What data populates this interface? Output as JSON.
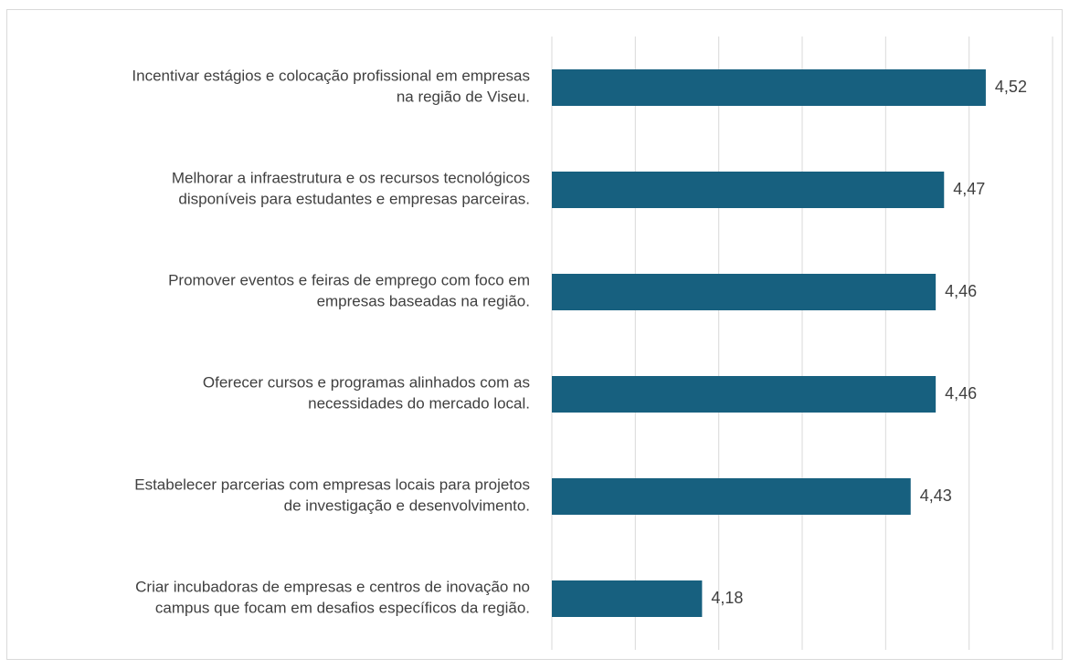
{
  "chart_data": {
    "type": "barh",
    "categories": [
      "Incentivar estágios e colocação profissional em empresas\nna região de Viseu.",
      "Melhorar a infraestrutura e os recursos tecnológicos\ndisponíveis para estudantes e empresas parceiras.",
      "Promover eventos e feiras de emprego com foco em\nempresas baseadas na região.",
      "Oferecer cursos e programas alinhados com as\nnecessidades do mercado local.",
      "Estabelecer parcerias com empresas locais para projetos\nde investigação e desenvolvimento.",
      "Criar incubadoras de empresas e centros de inovação no\ncampus que focam em desafios específicos da região."
    ],
    "values": [
      4.52,
      4.47,
      4.46,
      4.46,
      4.43,
      4.18
    ],
    "value_labels": [
      "4,52",
      "4,47",
      "4,46",
      "4,46",
      "4,43",
      "4,18"
    ],
    "color": "#17607f",
    "xlim": [
      4.0,
      4.6
    ],
    "xticks": [
      4.0,
      4.1,
      4.2,
      4.3,
      4.4,
      4.5,
      4.6
    ],
    "grid": true
  }
}
